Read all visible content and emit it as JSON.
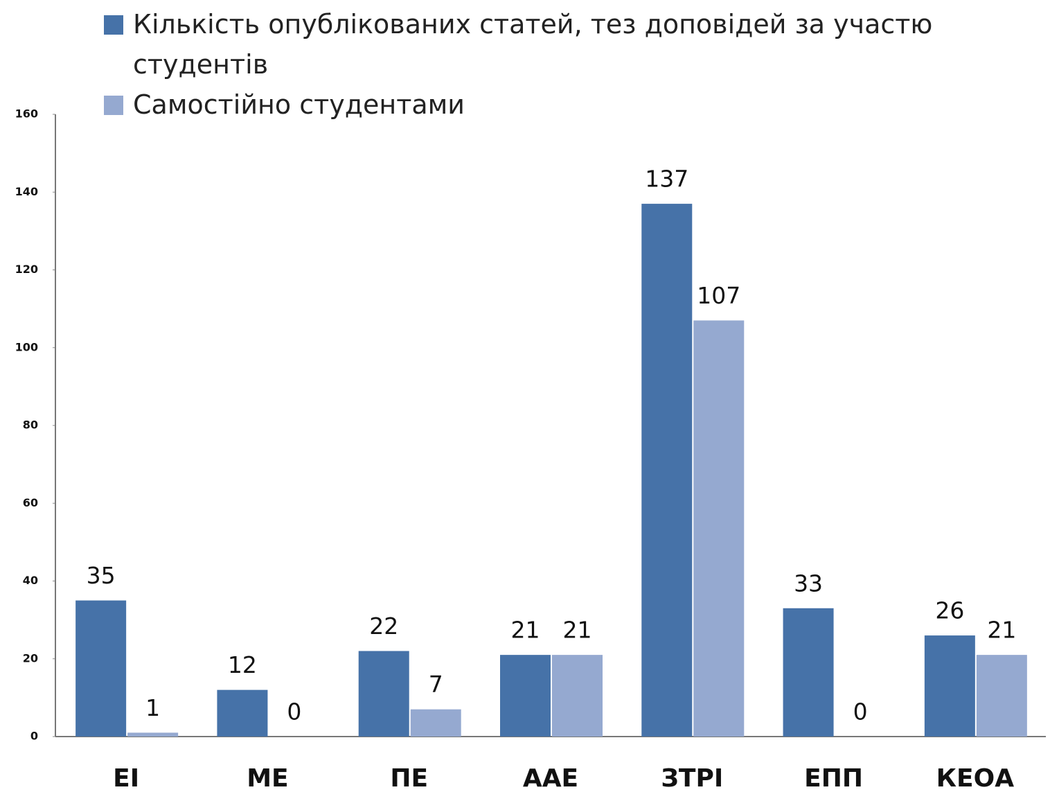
{
  "chart_data": {
    "type": "bar",
    "categories": [
      "ЕІ",
      "МЕ",
      "ПЕ",
      "ААЕ",
      "ЗТРІ",
      "ЕПП",
      "КЕОА"
    ],
    "series": [
      {
        "name": "Кількість опублікованих статей, тез доповідей за участю студентів",
        "color": "#4672a8",
        "values": [
          35,
          12,
          22,
          21,
          137,
          33,
          26
        ]
      },
      {
        "name": "Самостійно студентами",
        "color": "#95a9d0",
        "values": [
          1,
          0,
          7,
          21,
          107,
          0,
          21
        ]
      }
    ],
    "ylim": [
      0,
      160
    ],
    "yticks": [
      0,
      20,
      40,
      60,
      80,
      100,
      120,
      140,
      160
    ],
    "grid": false,
    "legend": "top"
  }
}
